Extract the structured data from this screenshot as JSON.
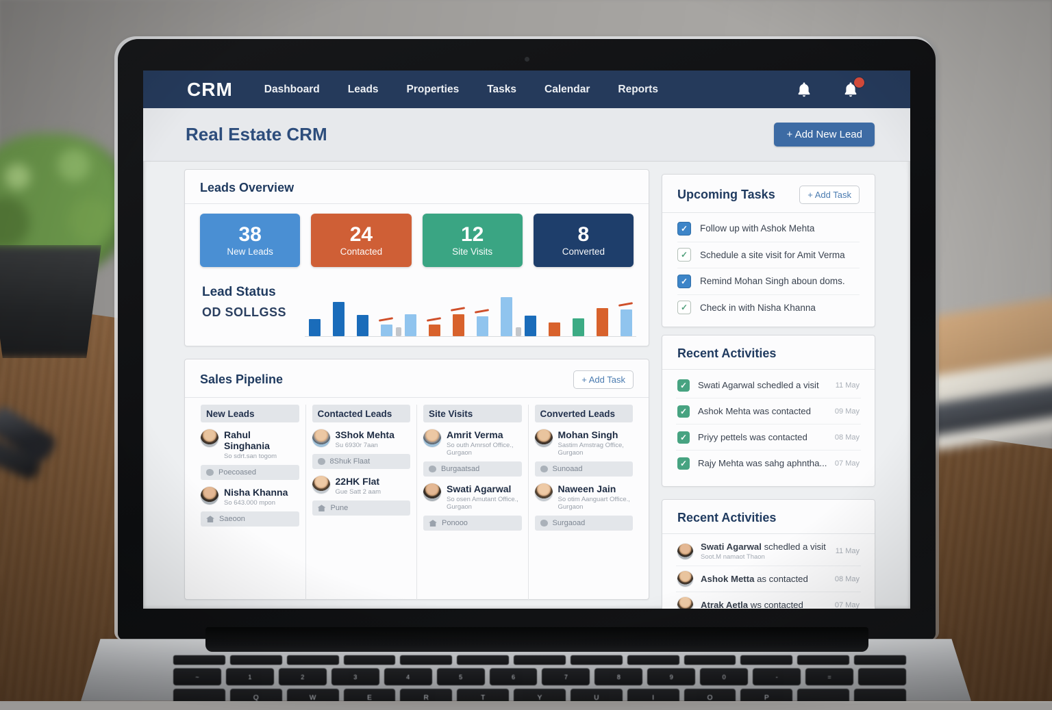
{
  "nav": {
    "logo": "CRM",
    "items": [
      "Dashboard",
      "Leads",
      "Properties",
      "Tasks",
      "Calendar",
      "Reports"
    ]
  },
  "header": {
    "title": "Real Estate CRM",
    "add_lead_label": "+ Add New Lead"
  },
  "leads_overview": {
    "title": "Leads Overview",
    "stats": [
      {
        "value": "38",
        "label": "New Leads",
        "color": "#4a8fd3"
      },
      {
        "value": "24",
        "label": "Contacted",
        "color": "#cf5f36"
      },
      {
        "value": "12",
        "label": "Site Visits",
        "color": "#3aa583"
      },
      {
        "value": "8",
        "label": "Converted",
        "color": "#1e3e6b"
      }
    ]
  },
  "chart_data": {
    "type": "bar",
    "title": "Lead Status",
    "subtitle": "OD SOLLGSS",
    "axis_labels": "none visible",
    "unit": "relative bar height (px, baseline 0, max 57)",
    "colors": {
      "blue": "#1a6cba",
      "lightblue": "#90c4ee",
      "orange": "#d8622c",
      "green": "#3cab84"
    },
    "groups": [
      {
        "bars": [
          {
            "v": 25,
            "color": "blue"
          },
          {
            "v": 50,
            "color": "blue"
          },
          {
            "v": 31,
            "color": "blue"
          },
          {
            "v": 17,
            "color": "lightblue",
            "marker": true
          }
        ]
      },
      {
        "bars": [
          {
            "v": 32,
            "color": "lightblue"
          },
          {
            "v": 17,
            "color": "orange",
            "marker": true
          },
          {
            "v": 32,
            "color": "orange",
            "marker": true
          },
          {
            "v": 29,
            "color": "lightblue",
            "marker": true
          },
          {
            "v": 57,
            "color": "lightblue"
          }
        ]
      },
      {
        "bars": [
          {
            "v": 30,
            "color": "blue"
          },
          {
            "v": 20,
            "color": "orange"
          },
          {
            "v": 26,
            "color": "green"
          },
          {
            "v": 41,
            "color": "orange"
          },
          {
            "v": 39,
            "color": "lightblue",
            "marker": true
          }
        ]
      }
    ]
  },
  "pipeline": {
    "title": "Sales Pipeline",
    "add_task_label": "+ Add Task",
    "columns": [
      {
        "header": "New Leads",
        "cards": [
          {
            "name": "Rahul Singhania",
            "subtitle": "So sdrt.san togom",
            "tag": "Poecoased",
            "tag_icon": "dot"
          },
          {
            "name": "Nisha Khanna",
            "subtitle": "So 643.000 mpon",
            "tag": "Saeoon",
            "tag_icon": "house"
          }
        ]
      },
      {
        "header": "Contacted Leads",
        "cards": [
          {
            "name": "3Shok Mehta",
            "subtitle": "Su 6930r 7aan",
            "tag": "8Shuk Flaat",
            "tag_icon": "dot"
          },
          {
            "name": "22HK Flat",
            "subtitle": "Gue Satt 2 aam",
            "tag": "Pune",
            "tag_icon": "house"
          }
        ]
      },
      {
        "header": "Site Visits",
        "cards": [
          {
            "name": "Amrit Verma",
            "subtitle": "So outh Amrsof Office., Gurgaon",
            "tag": "Burgaatsad",
            "tag_icon": "dot"
          },
          {
            "name": "Swati Agarwal",
            "subtitle": "So osen Amutant Office., Gurgaon",
            "tag": "Ponooo",
            "tag_icon": "house"
          }
        ]
      },
      {
        "header": "Converted Leads",
        "cards": [
          {
            "name": "Mohan Singh",
            "subtitle": "Sastim Amstrag Office, Gurgaon",
            "tag": "Sunoaad",
            "tag_icon": "dot"
          },
          {
            "name": "Naween Jain",
            "subtitle": "So otim Aanguart Office., Gurgaon",
            "tag": "Surgaoad",
            "tag_icon": "dot"
          }
        ]
      }
    ]
  },
  "tasks": {
    "title": "Upcoming Tasks",
    "add_task_label": "+ Add Task",
    "items": [
      {
        "label": "Follow up with Ashok Mehta",
        "checkbox": "blue-filled"
      },
      {
        "label": "Schedule a site visit for Amit Verma",
        "checkbox": "green-outline"
      },
      {
        "label": "Remind Mohan Singh aboun doms.",
        "checkbox": "blue-filled"
      },
      {
        "label": "Check in with Nisha Khanna",
        "checkbox": "green-outline"
      }
    ]
  },
  "recent1": {
    "title": "Recent Activities",
    "items": [
      {
        "text": "Swati Agarwal schedled a visit",
        "date": "11 May"
      },
      {
        "text": "Ashok Mehta was contacted",
        "date": "09 May"
      },
      {
        "text": "Priyy pettels was contacted",
        "date": "08 May"
      },
      {
        "text": "Rajy Mehta was sahg aphntha...",
        "date": "07 May"
      }
    ]
  },
  "recent2": {
    "title": "Recent Activities",
    "items": [
      {
        "name": "Swati Agarwal",
        "rest": " schedled a visit",
        "subtitle": "Soot.M namaot Thaon",
        "date": "11 May"
      },
      {
        "name": "Ashok Metta",
        "rest": " as contacted",
        "subtitle": "",
        "date": "08 May"
      },
      {
        "name": "Atrak Aetla",
        "rest": " ws contacted",
        "subtitle": "",
        "date": "07 May"
      }
    ]
  },
  "keyboard": {
    "number_row": [
      "~",
      "1",
      "2",
      "3",
      "4",
      "5",
      "6",
      "7",
      "8",
      "9",
      "0",
      "-",
      "=",
      ""
    ],
    "letter_row": [
      "",
      "Q",
      "W",
      "E",
      "R",
      "T",
      "Y",
      "U",
      "I",
      "O",
      "P",
      "",
      ""
    ]
  }
}
